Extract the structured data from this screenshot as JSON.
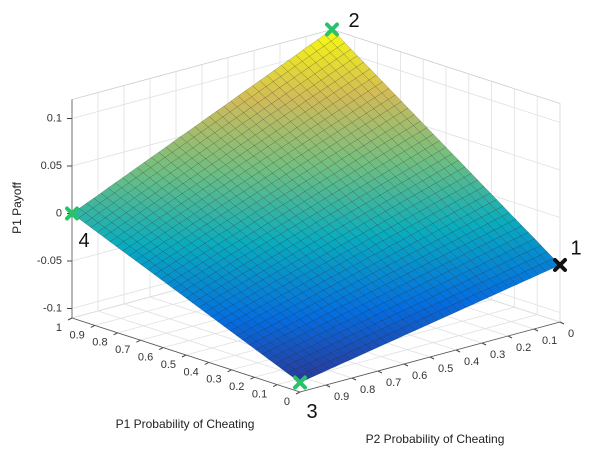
{
  "chart_data": {
    "type": "surface3d",
    "xlabel": "P1 Probability of Cheating",
    "ylabel": "P2 Probability of Cheating",
    "zlabel": "P1 Payoff",
    "xlim": [
      0,
      1
    ],
    "ylim": [
      0,
      1
    ],
    "zlim": [
      -0.11,
      0.12
    ],
    "xticks": [
      0,
      0.1,
      0.2,
      0.3,
      0.4,
      0.5,
      0.6,
      0.7,
      0.8,
      0.9,
      1
    ],
    "yticks": [
      0,
      0.1,
      0.2,
      0.3,
      0.4,
      0.5,
      0.6,
      0.7,
      0.8,
      0.9
    ],
    "zticks": [
      -0.1,
      -0.05,
      0,
      0.05,
      0.1
    ],
    "grid": true,
    "colormap": "parula",
    "points": [
      {
        "label": "1",
        "x": 0,
        "y": 0,
        "z": -0.05,
        "color": "#111111"
      },
      {
        "label": "2",
        "x": 1,
        "y": 0,
        "z": 0.12,
        "color": "#27c26a"
      },
      {
        "label": "3",
        "x": 0,
        "y": 1,
        "z": -0.1,
        "color": "#27c26a"
      },
      {
        "label": "4",
        "x": 1,
        "y": 1,
        "z": 0,
        "color": "#27c26a"
      }
    ]
  }
}
